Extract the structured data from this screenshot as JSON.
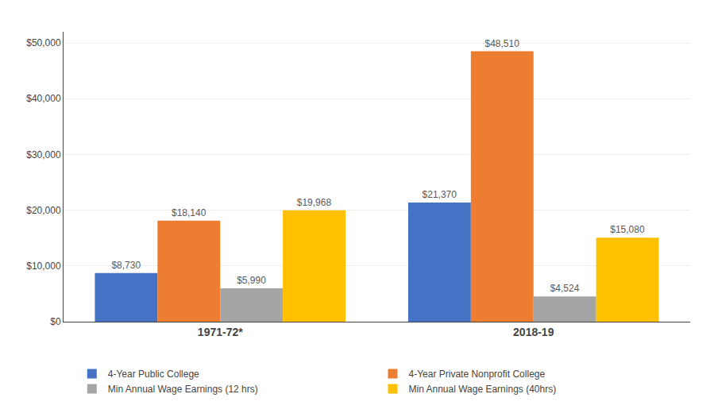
{
  "chart_data": {
    "type": "bar",
    "categories": [
      "1971-72*",
      "2018-19"
    ],
    "series": [
      {
        "name": "4-Year Public College",
        "color": "#4472C4",
        "values": [
          8730,
          21370
        ],
        "value_labels": [
          "$8,730",
          "$21,370"
        ]
      },
      {
        "name": "4-Year Private Nonprofit College",
        "color": "#ED7D31",
        "values": [
          18140,
          48510
        ],
        "value_labels": [
          "$18,140",
          "$48,510"
        ]
      },
      {
        "name": "Min Annual Wage Earnings (12 hrs)",
        "color": "#A5A5A5",
        "values": [
          5990,
          4524
        ],
        "value_labels": [
          "$5,990",
          "$4,524"
        ]
      },
      {
        "name": "Min Annual Wage Earnings (40hrs)",
        "color": "#FFC000",
        "values": [
          19968,
          15080
        ],
        "value_labels": [
          "$19,968",
          "$15,080"
        ]
      }
    ],
    "ylim": [
      0,
      52000
    ],
    "yticks": [
      {
        "value": 0,
        "label": "$0"
      },
      {
        "value": 10000,
        "label": "$10,000"
      },
      {
        "value": 20000,
        "label": "$20,000"
      },
      {
        "value": 30000,
        "label": "$30,000"
      },
      {
        "value": 40000,
        "label": "$40,000"
      },
      {
        "value": 50000,
        "label": "$50,000"
      }
    ],
    "grid": true,
    "legend": "bottom",
    "data_labels": true
  }
}
